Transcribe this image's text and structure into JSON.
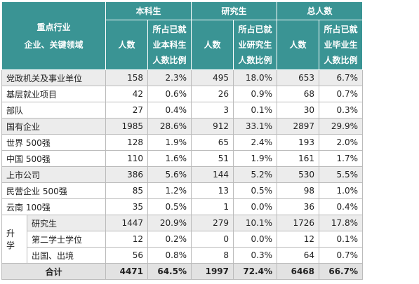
{
  "table": {
    "stub_header": [
      "重点行业",
      "企业、关键领域"
    ],
    "groups": [
      "本科生",
      "研究生",
      "总人数"
    ],
    "subheaders": [
      "人数",
      "所占已就业本科生人数比例",
      "人数",
      "所占已就业研究生人数比例",
      "人数",
      "所占已就业毕业生人数比例"
    ],
    "rows": [
      {
        "label": "党政机关及事业单位",
        "cells": [
          "158",
          "2.3%",
          "495",
          "18.0%",
          "653",
          "6.7%"
        ]
      },
      {
        "label": "基层就业项目",
        "cells": [
          "42",
          "0.6%",
          "26",
          "0.9%",
          "68",
          "0.7%"
        ]
      },
      {
        "label": "部队",
        "cells": [
          "27",
          "0.4%",
          "3",
          "0.1%",
          "30",
          "0.3%"
        ]
      },
      {
        "label": "国有企业",
        "cells": [
          "1985",
          "28.6%",
          "912",
          "33.1%",
          "2897",
          "29.9%"
        ]
      },
      {
        "label": "世界 500强",
        "cells": [
          "128",
          "1.9%",
          "65",
          "2.4%",
          "193",
          "2.0%"
        ]
      },
      {
        "label": "中国 500强",
        "cells": [
          "110",
          "1.6%",
          "51",
          "1.9%",
          "161",
          "1.7%"
        ]
      },
      {
        "label": "上市公司",
        "cells": [
          "386",
          "5.6%",
          "144",
          "5.2%",
          "530",
          "5.5%"
        ]
      },
      {
        "label": "民营企业 500强",
        "cells": [
          "85",
          "1.2%",
          "13",
          "0.5%",
          "98",
          "1.0%"
        ]
      },
      {
        "label": "云南 100强",
        "cells": [
          "35",
          "0.5%",
          "1",
          "0.0%",
          "36",
          "0.4%"
        ]
      }
    ],
    "further_study": {
      "label": "升学",
      "rows": [
        {
          "label": "研究生",
          "cells": [
            "1447",
            "20.9%",
            "279",
            "10.1%",
            "1726",
            "17.8%"
          ]
        },
        {
          "label": "第二学士学位",
          "cells": [
            "12",
            "0.2%",
            "0",
            "0.0%",
            "12",
            "0.1%"
          ]
        },
        {
          "label": "出国、出境",
          "cells": [
            "56",
            "0.8%",
            "8",
            "0.3%",
            "64",
            "0.7%"
          ]
        }
      ]
    },
    "total": {
      "label": "合计",
      "cells": [
        "4471",
        "64.5%",
        "1997",
        "72.4%",
        "6468",
        "66.7%"
      ]
    }
  }
}
